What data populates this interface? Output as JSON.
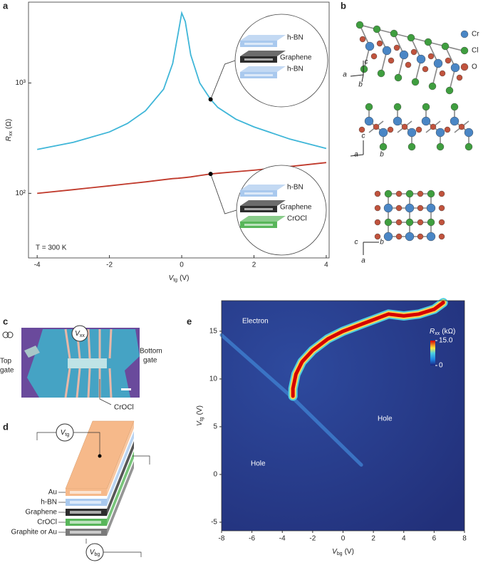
{
  "chart_data": [
    {
      "panel": "a",
      "type": "line",
      "ylog": true,
      "x": [
        -4,
        -3,
        -2,
        -1.5,
        -1,
        -0.5,
        -0.25,
        -0.1,
        0,
        0.1,
        0.25,
        0.5,
        0.8,
        1,
        1.5,
        2,
        3,
        4
      ],
      "series": [
        {
          "color": "#3fb6d8",
          "values": [
            250,
            290,
            360,
            430,
            560,
            880,
            1500,
            2800,
            4300,
            3600,
            1800,
            1000,
            710,
            600,
            470,
            400,
            310,
            255
          ]
        },
        {
          "color": "#c0392b",
          "values": [
            100,
            108,
            117,
            122,
            127,
            133,
            136,
            137,
            138,
            139,
            141,
            145,
            150,
            152,
            157,
            162,
            175,
            190
          ]
        }
      ],
      "xlim": [
        -4.24,
        4.08
      ],
      "xticks": [
        -4,
        -2,
        0,
        2,
        4
      ],
      "ylim": [
        26,
        5400
      ],
      "yticks": [
        {
          "value": 100,
          "label": "10²"
        },
        {
          "value": 1000,
          "label": "10³"
        }
      ],
      "xlabel": {
        "main": "V",
        "sub": "tg",
        "unit": "(V)"
      },
      "ylabel": {
        "main": "R",
        "sub": "xx",
        "unit": "(Ω)"
      },
      "note": "T = 300 K",
      "insets": [
        {
          "x": 0.8,
          "y": 710,
          "layers": [
            "h-BN",
            "Graphene",
            "h-BN"
          ]
        },
        {
          "x": 0.8,
          "y": 150,
          "layers": [
            "h-BN",
            "Graphene",
            "CrOCl"
          ]
        }
      ]
    },
    {
      "panel": "e",
      "type": "heatmap",
      "xlim": [
        -8,
        8
      ],
      "xticks": [
        -8,
        -6,
        -4,
        -2,
        0,
        2,
        4,
        6,
        8
      ],
      "ylim": [
        -5.9,
        18.2
      ],
      "yticks": [
        -5,
        0,
        5,
        10,
        15
      ],
      "xlabel": {
        "main": "V",
        "sub": "bg",
        "unit": "(V)"
      },
      "ylabel": {
        "main": "V",
        "sub": "tg",
        "unit": "(V)"
      },
      "ridge": {
        "x": [
          -3.3,
          -3.3,
          -3.1,
          -2.7,
          -2,
          -1,
          0,
          1,
          2,
          3,
          4,
          5,
          6,
          6.6
        ],
        "y": [
          8.2,
          9,
          10.5,
          11.8,
          13,
          14.2,
          15,
          15.6,
          16.2,
          16.8,
          16.6,
          16.8,
          17.3,
          18
        ]
      },
      "dirac": {
        "x": [
          -8,
          -3.3,
          1.2
        ],
        "y": [
          14.6,
          8,
          1
        ]
      },
      "regions": [
        "Electron",
        "Hole",
        "Hole"
      ],
      "colorbar": {
        "title": {
          "main": "R",
          "sub": "xx",
          "unit": "(kΩ)"
        },
        "lim": [
          0,
          15
        ],
        "ticks": [
          0,
          {
            "value": 15,
            "label": "15.0"
          }
        ]
      }
    }
  ],
  "panel_b": {
    "label": "b",
    "legend": [
      "Cr",
      "Cl",
      "O"
    ],
    "axes": [
      [
        "c",
        "a",
        "b"
      ],
      [
        "c",
        "a",
        "b"
      ],
      [
        "c",
        "b",
        "a"
      ]
    ]
  },
  "panel_c": {
    "label": "c",
    "vxx": {
      "main": "V",
      "sub": "xx"
    },
    "top_gate": [
      "Top",
      "gate"
    ],
    "bottom_gate": [
      "Bottom",
      "gate"
    ],
    "crocl": "CrOCl"
  },
  "panel_d": {
    "label": "d",
    "layers": [
      "Au",
      "h-BN",
      "Graphene",
      "CrOCl",
      "Graphite or Au"
    ],
    "vtg": {
      "main": "V",
      "sub": "tg"
    },
    "vbg": {
      "main": "V",
      "sub": "bg"
    }
  }
}
